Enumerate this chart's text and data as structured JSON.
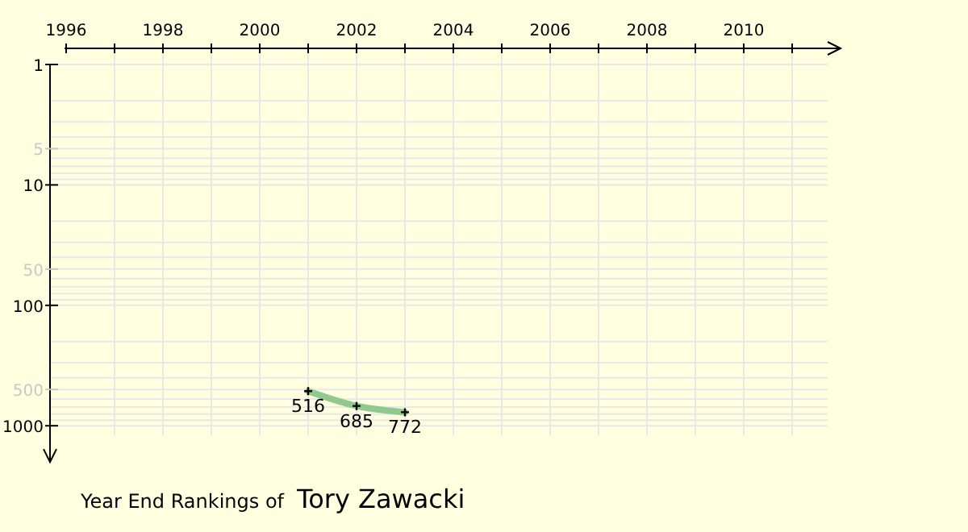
{
  "chart_data": {
    "type": "line",
    "title": "Year End Rankings of",
    "subtitle": "Tory Zawacki",
    "x": [
      2001,
      2002,
      2003
    ],
    "series": [
      {
        "color": "#90c890",
        "values": [
          516,
          685,
          772
        ]
      }
    ],
    "xlim": [
      1996,
      2012
    ],
    "xticks": [
      1996,
      {
        "value": 1997,
        "label": null
      },
      1998,
      {
        "value": 1999,
        "label": null
      },
      2000,
      {
        "value": 2001,
        "label": null
      },
      2002,
      {
        "value": 2003,
        "label": null
      },
      2004,
      {
        "value": 2005,
        "label": null
      },
      2006,
      {
        "value": 2007,
        "label": null
      },
      2008,
      {
        "value": 2009,
        "label": null
      },
      2010,
      {
        "value": 2011,
        "label": null
      }
    ],
    "ylim": [
      2000,
      1
    ],
    "yticks": [
      1,
      5,
      10,
      50,
      100,
      500,
      1000
    ],
    "log": "y",
    "grid": true,
    "marker": "cross",
    "data_labels": true,
    "line_style": "solid"
  }
}
